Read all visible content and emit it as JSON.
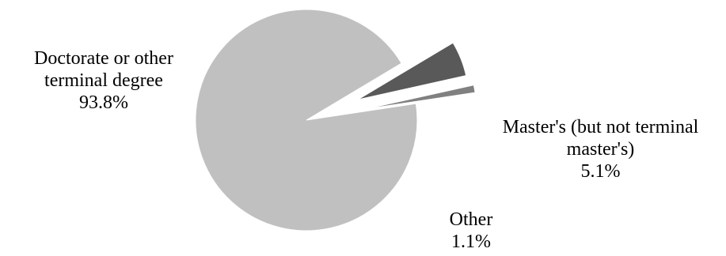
{
  "chart_data": {
    "type": "pie",
    "title": "",
    "legend": "none",
    "slices": [
      {
        "label_lines": [
          "Doctorate or other",
          "terminal degree"
        ],
        "value_label": "93.8%",
        "value": 93.8,
        "color": "#c0c0c0",
        "exploded": false
      },
      {
        "label_lines": [
          "Master's (but not terminal",
          "master's)"
        ],
        "value_label": "5.1%",
        "value": 5.1,
        "color": "#595959",
        "exploded": true
      },
      {
        "label_lines": [
          "Other"
        ],
        "value_label": "1.1%",
        "value": 1.1,
        "color": "#808080",
        "exploded": true
      }
    ]
  }
}
